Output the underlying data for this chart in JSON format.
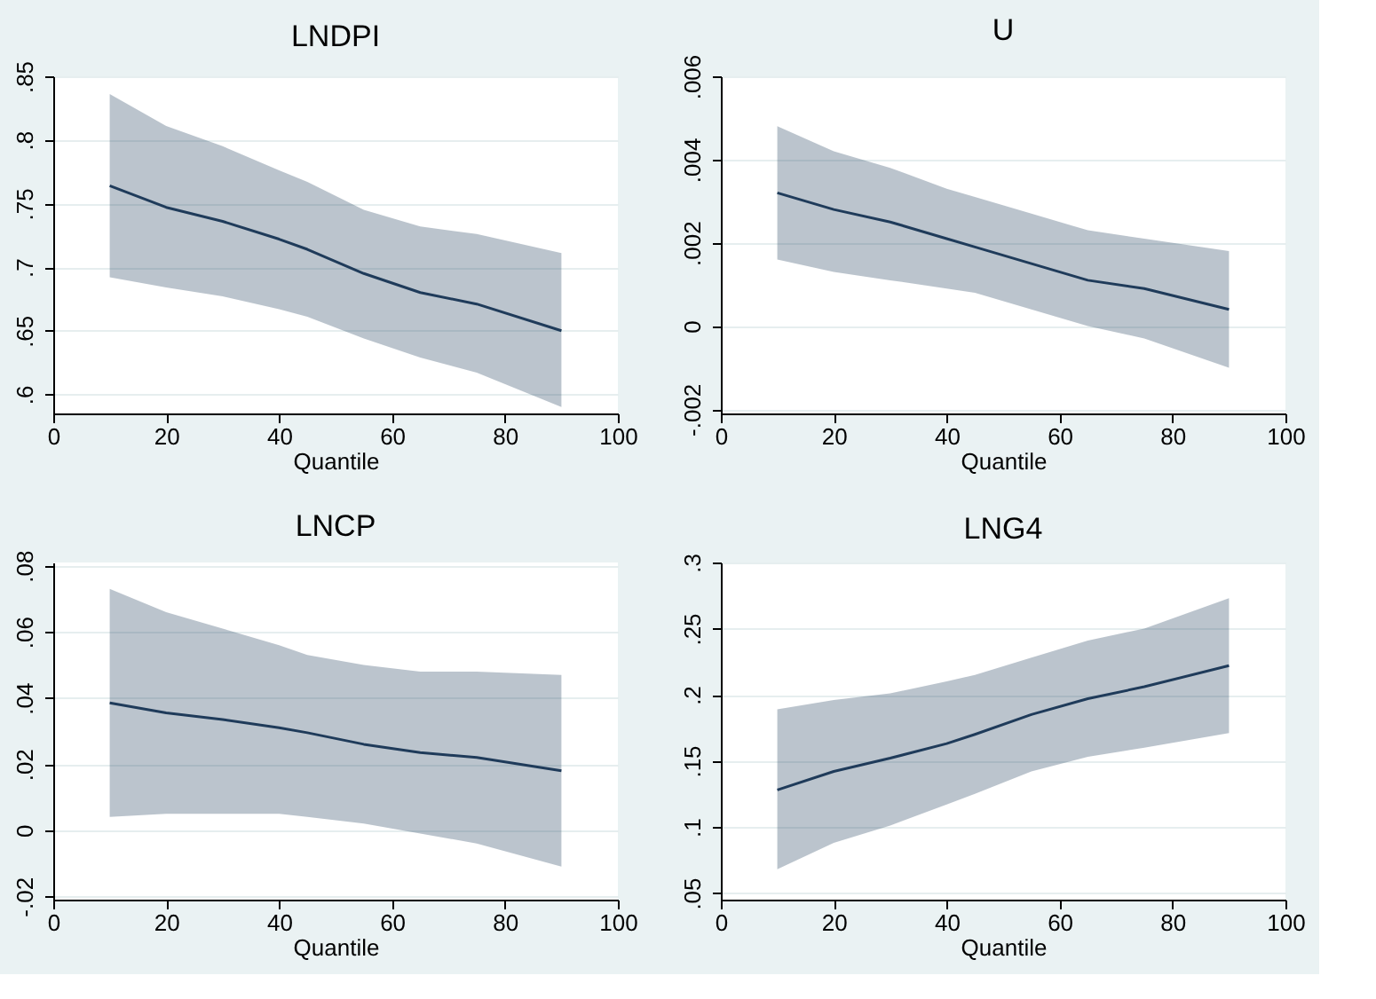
{
  "chart_data": [
    {
      "type": "line",
      "title": "LNDPI",
      "xlabel": "Quantile",
      "x": [
        10,
        20,
        30,
        40,
        45,
        55,
        65,
        75,
        90
      ],
      "xlim": [
        0,
        100
      ],
      "xticks": [
        0,
        20,
        40,
        60,
        80,
        100
      ],
      "ylim": [
        0.585,
        0.85
      ],
      "yticks": [
        {
          "value": 0.6,
          "label": ".6"
        },
        {
          "value": 0.65,
          "label": ".65"
        },
        {
          "value": 0.7,
          "label": ".7"
        },
        {
          "value": 0.75,
          "label": ".75"
        },
        {
          "value": 0.8,
          "label": ".8"
        },
        {
          "value": 0.85,
          "label": ".85"
        }
      ],
      "grid": "y",
      "series": [
        {
          "color": "#1f3b5a",
          "values": [
            0.764,
            0.747,
            0.736,
            0.722,
            0.714,
            0.695,
            0.68,
            0.671,
            0.65
          ],
          "lower": [
            0.692,
            0.684,
            0.677,
            0.667,
            0.661,
            0.644,
            0.629,
            0.617,
            0.59
          ],
          "upper": [
            0.836,
            0.811,
            0.795,
            0.776,
            0.767,
            0.745,
            0.732,
            0.726,
            0.711
          ]
        }
      ]
    },
    {
      "type": "line",
      "title": "U",
      "xlabel": "Quantile",
      "x": [
        10,
        20,
        30,
        40,
        45,
        55,
        65,
        75,
        90
      ],
      "xlim": [
        0,
        100
      ],
      "xticks": [
        0,
        20,
        40,
        60,
        80,
        100
      ],
      "ylim": [
        -0.0021,
        0.006
      ],
      "yticks": [
        {
          "value": -0.002,
          "label": "-.002"
        },
        0,
        {
          "value": 0.002,
          "label": ".002"
        },
        {
          "value": 0.004,
          "label": ".004"
        },
        {
          "value": 0.006,
          "label": ".006"
        }
      ],
      "grid": "y",
      "series": [
        {
          "color": "#1f3b5a",
          "values": [
            0.0032,
            0.0028,
            0.0025,
            0.0021,
            0.0019,
            0.0015,
            0.0011,
            0.0009,
            0.0004
          ],
          "lower": [
            0.0016,
            0.0013,
            0.0011,
            0.0009,
            0.0008,
            0.0004,
            0.0,
            -0.0003,
            -0.001
          ],
          "upper": [
            0.0048,
            0.0042,
            0.0038,
            0.0033,
            0.0031,
            0.0027,
            0.0023,
            0.0021,
            0.0018
          ]
        }
      ]
    },
    {
      "type": "line",
      "title": "LNCP",
      "xlabel": "Quantile",
      "x": [
        10,
        20,
        30,
        40,
        45,
        55,
        65,
        75,
        90
      ],
      "xlim": [
        0,
        100
      ],
      "xticks": [
        0,
        20,
        40,
        60,
        80,
        100
      ],
      "ylim": [
        -0.021,
        0.081
      ],
      "yticks": [
        {
          "value": -0.02,
          "label": "-.02"
        },
        0,
        {
          "value": 0.02,
          "label": ".02"
        },
        {
          "value": 0.04,
          "label": ".04"
        },
        {
          "value": 0.06,
          "label": ".06"
        },
        {
          "value": 0.08,
          "label": ".08"
        }
      ],
      "grid": "y",
      "series": [
        {
          "color": "#1f3b5a",
          "values": [
            0.0385,
            0.0355,
            0.0335,
            0.031,
            0.0295,
            0.026,
            0.0235,
            0.022,
            0.018
          ],
          "lower": [
            0.004,
            0.005,
            0.005,
            0.005,
            0.004,
            0.002,
            -0.001,
            -0.004,
            -0.011
          ],
          "upper": [
            0.073,
            0.066,
            0.061,
            0.056,
            0.053,
            0.05,
            0.048,
            0.048,
            0.047
          ]
        }
      ]
    },
    {
      "type": "line",
      "title": "LNG4",
      "xlabel": "Quantile",
      "x": [
        10,
        20,
        30,
        40,
        45,
        55,
        65,
        75,
        90
      ],
      "xlim": [
        0,
        100
      ],
      "xticks": [
        0,
        20,
        40,
        60,
        80,
        100
      ],
      "ylim": [
        0.045,
        0.3
      ],
      "yticks": [
        {
          "value": 0.05,
          "label": ".05"
        },
        {
          "value": 0.1,
          "label": ".1"
        },
        {
          "value": 0.15,
          "label": ".15"
        },
        {
          "value": 0.2,
          "label": ".2"
        },
        {
          "value": 0.25,
          "label": ".25"
        },
        {
          "value": 0.3,
          "label": ".3"
        }
      ],
      "grid": "y",
      "series": [
        {
          "color": "#1f3b5a",
          "values": [
            0.128,
            0.142,
            0.152,
            0.163,
            0.17,
            0.185,
            0.197,
            0.206,
            0.222
          ],
          "lower": [
            0.068,
            0.088,
            0.101,
            0.117,
            0.125,
            0.142,
            0.153,
            0.16,
            0.171
          ],
          "upper": [
            0.189,
            0.196,
            0.201,
            0.21,
            0.215,
            0.228,
            0.241,
            0.25,
            0.273
          ]
        }
      ]
    }
  ]
}
